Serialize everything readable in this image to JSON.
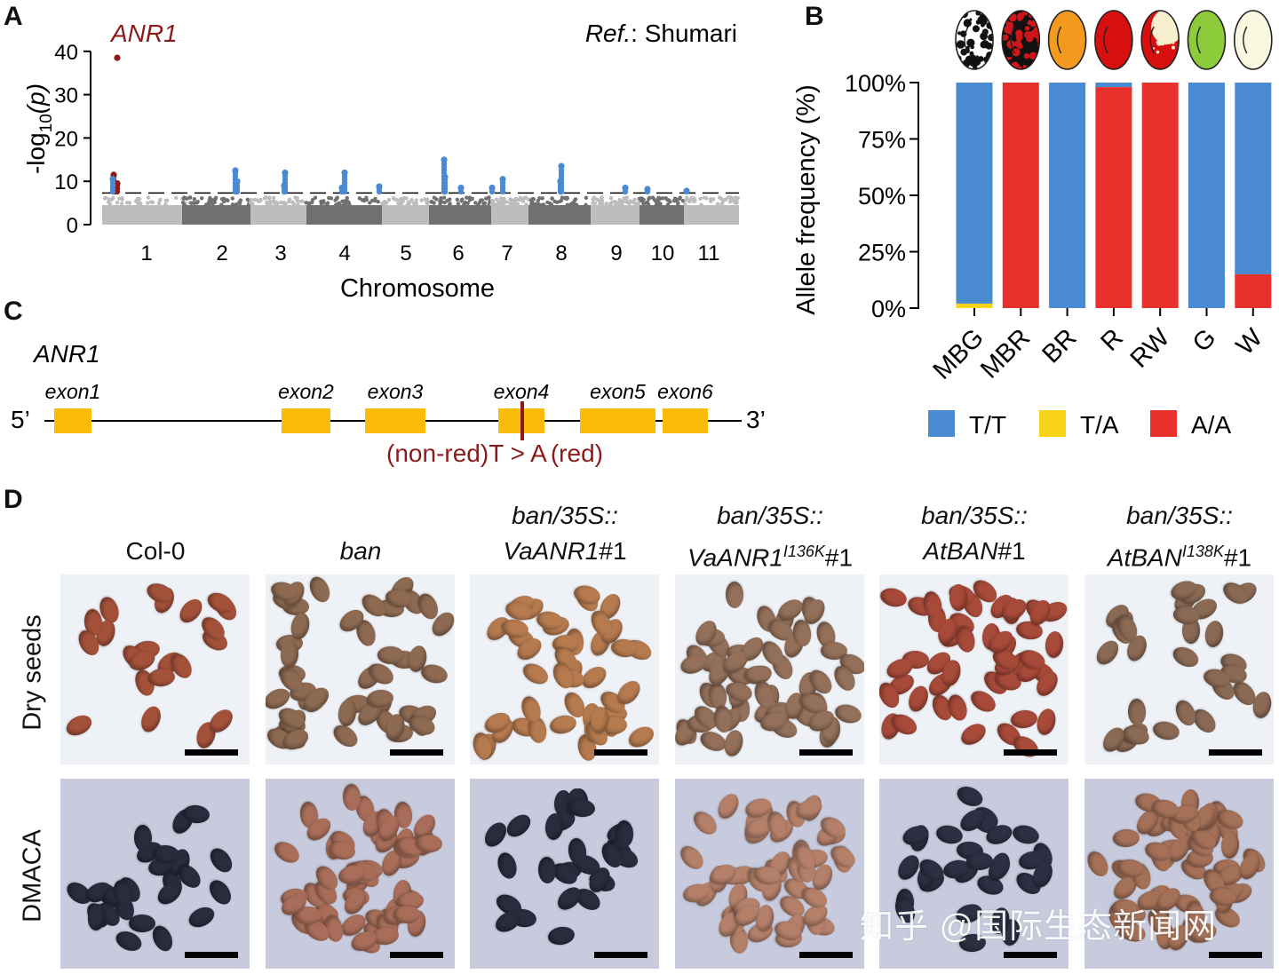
{
  "panels": {
    "a": "A",
    "b": "B",
    "c": "C",
    "d": "D"
  },
  "panel_a": {
    "gene_label": "ANR1",
    "reference_prefix": "Ref.",
    "reference_name": ": Shumari",
    "y_axis_label": "-log",
    "y_axis_sub": "10",
    "y_axis_var": "(p)",
    "x_axis_label": "Chromosome",
    "threshold": 7.3
  },
  "chart_data": [
    {
      "type": "scatter",
      "title": "Manhattan plot",
      "xlabel": "Chromosome",
      "ylabel": "-log10(p)",
      "ylim": [
        0,
        45
      ],
      "yticks": [
        "0",
        "10",
        "20",
        "30",
        "40"
      ],
      "categories": [
        "1",
        "2",
        "3",
        "4",
        "5",
        "6",
        "7",
        "8",
        "9",
        "10",
        "11"
      ],
      "threshold": 7.3,
      "peaks": [
        {
          "chromosome": "1",
          "value": 38.5,
          "label": "ANR1",
          "color": "#8b1a1a"
        },
        {
          "chromosome": "1",
          "value": 11.5,
          "color": "#8b1a1a"
        },
        {
          "chromosome": "1",
          "value": 9.5,
          "color": "#8b1a1a"
        },
        {
          "chromosome": "1",
          "value": 8.0,
          "color": "#8b1a1a"
        },
        {
          "chromosome": "1",
          "value": 10.5,
          "color": "#4a8ad0"
        },
        {
          "chromosome": "2",
          "value": 12.5,
          "color": "#4a8ad0"
        },
        {
          "chromosome": "2",
          "value": 10.0,
          "color": "#4a8ad0"
        },
        {
          "chromosome": "3",
          "value": 12.0,
          "color": "#4a8ad0"
        },
        {
          "chromosome": "3",
          "value": 9.0,
          "color": "#4a8ad0"
        },
        {
          "chromosome": "4",
          "value": 12.0,
          "color": "#4a8ad0"
        },
        {
          "chromosome": "4",
          "value": 8.5,
          "color": "#4a8ad0"
        },
        {
          "chromosome": "5",
          "value": 8.8,
          "color": "#4a8ad0"
        },
        {
          "chromosome": "6",
          "value": 15.0,
          "color": "#4a8ad0"
        },
        {
          "chromosome": "6",
          "value": 11.0,
          "color": "#4a8ad0"
        },
        {
          "chromosome": "6",
          "value": 8.5,
          "color": "#4a8ad0"
        },
        {
          "chromosome": "7",
          "value": 10.5,
          "color": "#4a8ad0"
        },
        {
          "chromosome": "7",
          "value": 8.5,
          "color": "#4a8ad0"
        },
        {
          "chromosome": "8",
          "value": 13.5,
          "color": "#4a8ad0"
        },
        {
          "chromosome": "8",
          "value": 10.0,
          "color": "#4a8ad0"
        },
        {
          "chromosome": "9",
          "value": 8.5,
          "color": "#4a8ad0"
        },
        {
          "chromosome": "10",
          "value": 8.2,
          "color": "#4a8ad0"
        },
        {
          "chromosome": "11",
          "value": 7.8,
          "color": "#4a8ad0"
        }
      ],
      "colors": {
        "odd_chr": "#bdbdbd",
        "even_chr": "#707070",
        "significant": "#4a8ad0",
        "candidate": "#8b1a1a"
      }
    },
    {
      "type": "bar",
      "stacked": true,
      "title": "",
      "xlabel": "",
      "ylabel": "Allele frequency (%)",
      "ylim": [
        0,
        100
      ],
      "yticks": [
        "0%",
        "25%",
        "50%",
        "75%",
        "100%"
      ],
      "categories": [
        "MBG",
        "MBR",
        "BR",
        "R",
        "RW",
        "G",
        "W"
      ],
      "series": [
        {
          "name": "T/T",
          "color": "#4a8ad0",
          "values": [
            98,
            0,
            100,
            2,
            0,
            100,
            85
          ]
        },
        {
          "name": "T/A",
          "color": "#f7d31a",
          "values": [
            2,
            0,
            0,
            0,
            0,
            0,
            0
          ]
        },
        {
          "name": "A/A",
          "color": "#e8312a",
          "values": [
            0,
            100,
            0,
            98,
            100,
            0,
            15
          ]
        }
      ],
      "legend_position": "bottom",
      "seed_icons": [
        {
          "category": "MBG",
          "pattern": "mottled",
          "base": "#ffffff",
          "spots": "#111111"
        },
        {
          "category": "MBR",
          "pattern": "mottled",
          "base": "#111111",
          "spots": "#d0161a"
        },
        {
          "category": "BR",
          "pattern": "solid",
          "base": "#f39a1e",
          "spots": ""
        },
        {
          "category": "R",
          "pattern": "solid",
          "base": "#d80f0f",
          "spots": ""
        },
        {
          "category": "RW",
          "pattern": "patched",
          "base": "#d80f0f",
          "spots": "#f8efcf"
        },
        {
          "category": "G",
          "pattern": "solid",
          "base": "#8ccb3a",
          "spots": ""
        },
        {
          "category": "W",
          "pattern": "solid",
          "base": "#fbf8e2",
          "spots": ""
        }
      ]
    }
  ],
  "panel_c": {
    "gene_label": "ANR1",
    "five_prime": "5’",
    "three_prime": "3’",
    "exons": [
      "exon1",
      "exon2",
      "exon3",
      "exon4",
      "exon5",
      "exon6"
    ],
    "mutation_left": "(non-red)",
    "mutation_change": "T > A",
    "mutation_right": "(red)",
    "exon_color": "#fbbb0a",
    "mutation_color": "#8b1a1a"
  },
  "panel_d": {
    "columns": [
      {
        "line1": "",
        "line2_plain": "Col-0",
        "line2_italic": "",
        "sup": "",
        "suffix": ""
      },
      {
        "line1": "",
        "line2_plain": "",
        "line2_italic": "ban",
        "sup": "",
        "suffix": ""
      },
      {
        "line1": "ban/35S::",
        "line2_plain": "",
        "line2_italic": "VaANR1",
        "sup": "",
        "suffix": "#1"
      },
      {
        "line1": "ban/35S::",
        "line2_plain": "",
        "line2_italic": "VaANR1",
        "sup": "I136K",
        "suffix": "#1"
      },
      {
        "line1": "ban/35S::",
        "line2_plain": "",
        "line2_italic": "AtBAN",
        "sup": "",
        "suffix": "#1"
      },
      {
        "line1": "ban/35S::",
        "line2_plain": "",
        "line2_italic": "AtBAN",
        "sup": "I138K",
        "suffix": "#1"
      }
    ],
    "rows": [
      "Dry seeds",
      "DMACA"
    ],
    "watermark": "知乎 @国际生态新闻网"
  }
}
